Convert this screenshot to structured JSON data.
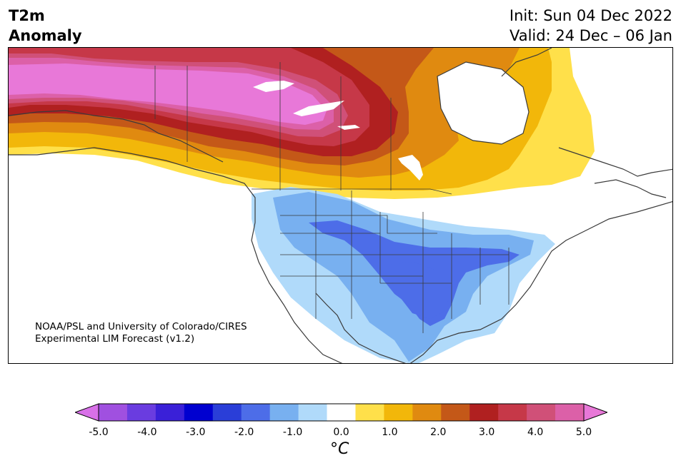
{
  "header": {
    "title_line1": "T2m",
    "title_line2": "Anomaly",
    "init_text": "Init: Sun 04 Dec 2022",
    "valid_text": "Valid: 24 Dec – 06 Jan"
  },
  "credit": {
    "line1": "NOAA/PSL and University of Colorado/CIRES",
    "line2": "Experimental LIM Forecast (v1.2)"
  },
  "colorbar": {
    "ticks": [
      "-5.0",
      "-4.0",
      "-3.0",
      "-2.0",
      "-1.0",
      "0.0",
      "1.0",
      "2.0",
      "3.0",
      "4.0",
      "5.0"
    ],
    "unit": "°C",
    "colors": [
      "#d870e8",
      "#a050e0",
      "#6a3ce0",
      "#3a20d8",
      "#0000d0",
      "#2a3ed8",
      "#4d6de8",
      "#78b0f0",
      "#b0dafa",
      "#ffffff",
      "#ffe04a",
      "#f2b70a",
      "#e08a10",
      "#c45818",
      "#b02020",
      "#c63848",
      "#d05078",
      "#dc60a8",
      "#e878d8"
    ]
  },
  "map_colors": {
    "pink": "#e878d8",
    "rose": "#d05078",
    "crimson": "#c63848",
    "darkred": "#b02020",
    "rust": "#c45818",
    "orange": "#e08a10",
    "gold": "#f2b70a",
    "yellow": "#ffe04a",
    "lightblue": "#b0dafa",
    "blue": "#78b0f0",
    "royal": "#4d6de8"
  }
}
